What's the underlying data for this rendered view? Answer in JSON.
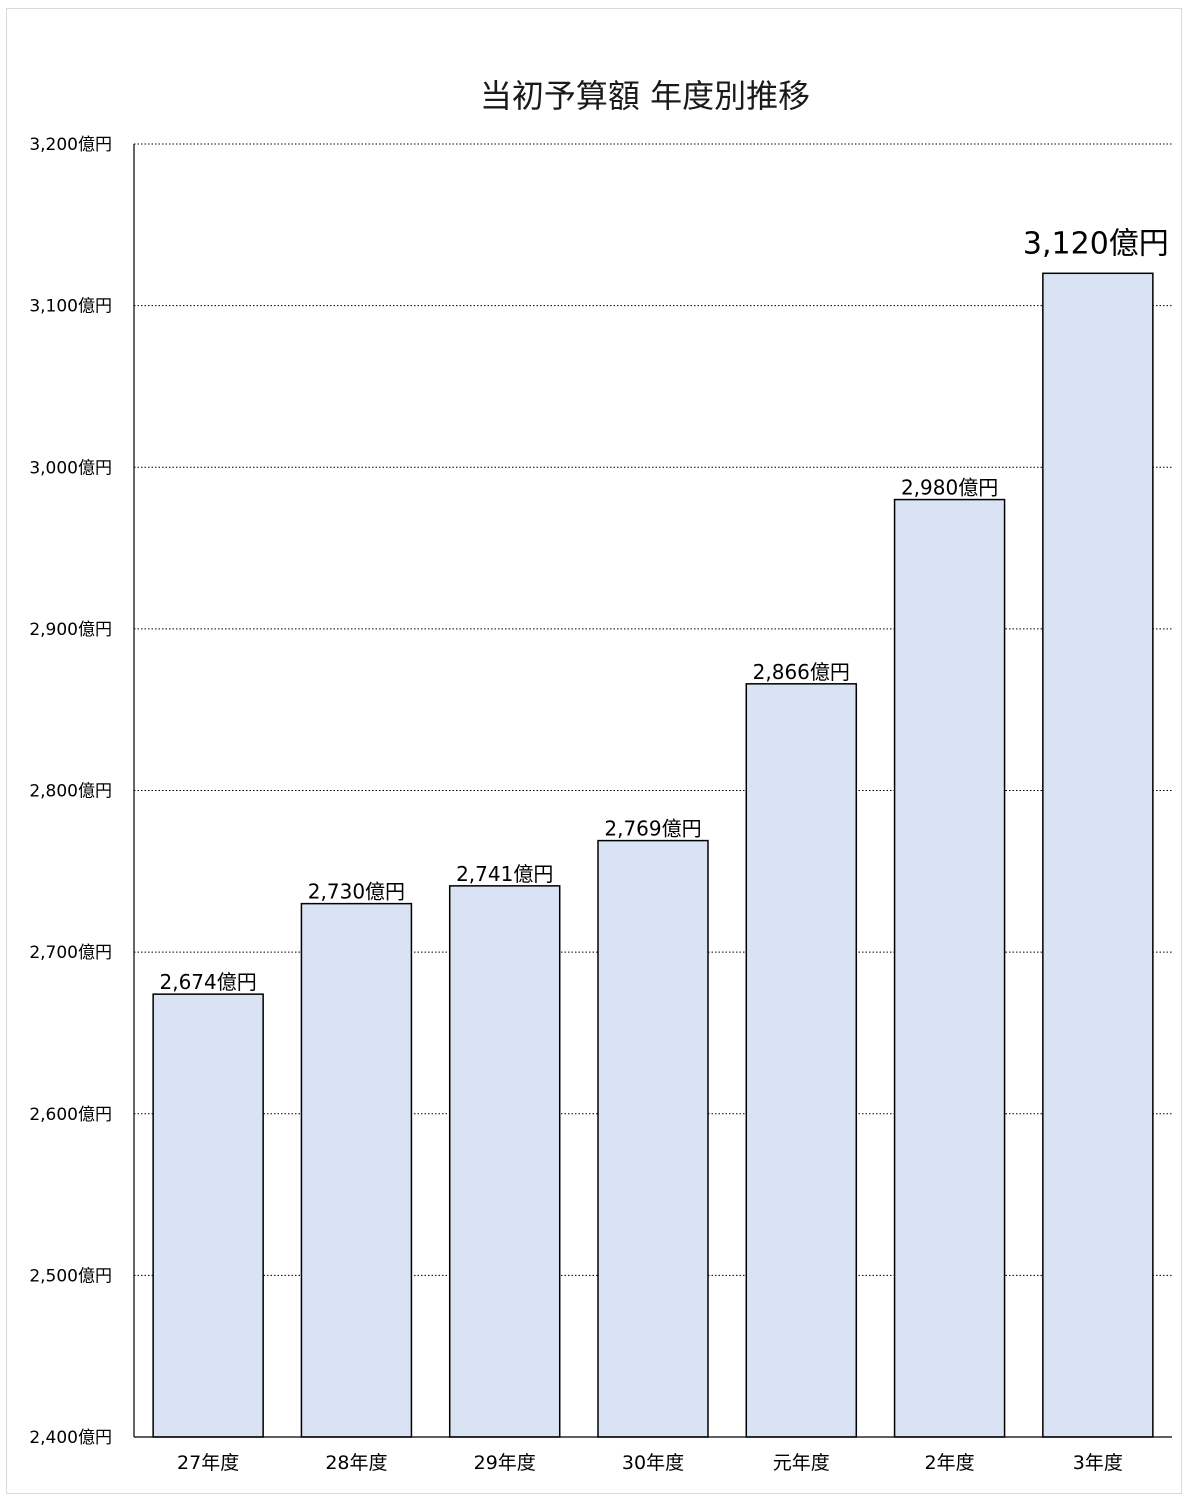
{
  "chart_data": {
    "type": "bar",
    "title": "当初予算額 年度別推移",
    "categories": [
      "27年度",
      "28年度",
      "29年度",
      "30年度",
      "元年度",
      "2年度",
      "3年度"
    ],
    "values": [
      2674,
      2730,
      2741,
      2769,
      2866,
      2980,
      3120
    ],
    "data_labels": [
      "2,674億円",
      "2,730億円",
      "2,741億円",
      "2,769億円",
      "2,866億円",
      "2,980億円",
      "3,120億円"
    ],
    "ylim": [
      2400,
      3200
    ],
    "yticks": [
      2400,
      2500,
      2600,
      2700,
      2800,
      2900,
      3000,
      3100,
      3200
    ],
    "ytick_labels": [
      "2,400億円",
      "2,500億円",
      "2,600億円",
      "2,700億円",
      "2,800億円",
      "2,900億円",
      "3,000億円",
      "3,100億円",
      "3,200億円"
    ],
    "grid": "horizontal dotted",
    "legend": "none",
    "bar_color": "#dae3f3",
    "bar_edge_color": "#000000",
    "highlight_last_label": true
  }
}
